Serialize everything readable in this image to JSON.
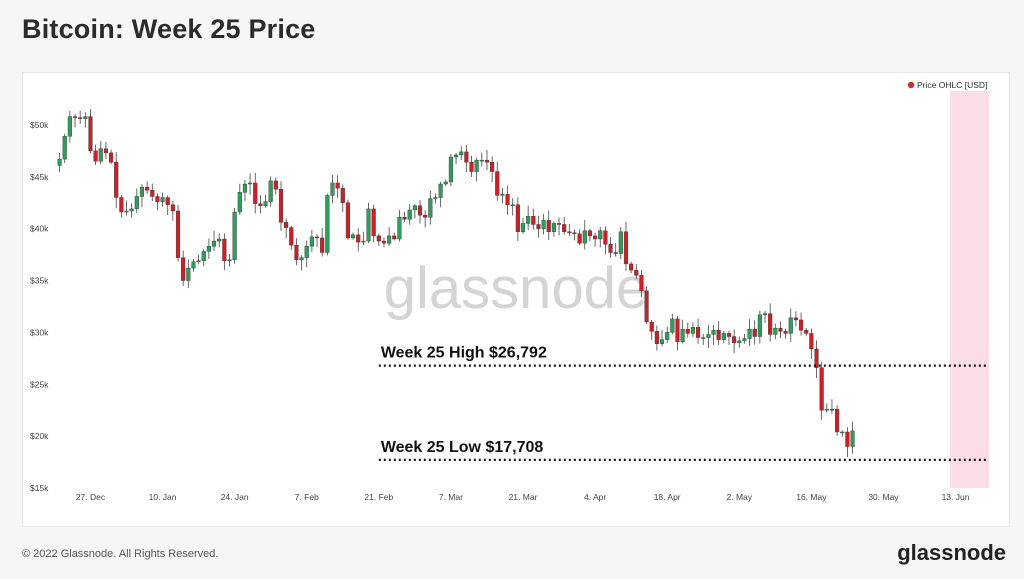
{
  "title": "Bitcoin: Week 25 Price",
  "footer": {
    "copyright": "© 2022 Glassnode. All Rights Reserved.",
    "brand": "glassnode"
  },
  "watermark": "glassnode",
  "colors": {
    "up": "#2e9e5b",
    "down": "#cc2027",
    "highlight": "#fbdde8",
    "legend_dot": "#d62828",
    "annotation_line": "#111111"
  },
  "chart_data": {
    "type": "candlestick",
    "legend": "Price OHLC [USD]",
    "legend_position": "top-right",
    "y_axis": {
      "min": 15000,
      "max": 55000,
      "ticks": [
        15000,
        20000,
        25000,
        30000,
        35000,
        40000,
        45000,
        50000
      ],
      "tick_labels": [
        "$15k",
        "$20k",
        "$25k",
        "$30k",
        "$35k",
        "$40k",
        "$45k",
        "$50k"
      ]
    },
    "x_axis": {
      "start": "2021-12-21",
      "end": "2022-06-19",
      "ticks": [
        "2021-12-27",
        "2022-01-10",
        "2022-01-24",
        "2022-02-07",
        "2022-02-21",
        "2022-03-07",
        "2022-03-21",
        "2022-04-04",
        "2022-04-18",
        "2022-05-02",
        "2022-05-16",
        "2022-05-30",
        "2022-06-13"
      ],
      "tick_labels": [
        "27. Dec",
        "10. Jan",
        "24. Jan",
        "7. Feb",
        "21. Feb",
        "7. Mar",
        "21. Mar",
        "4. Apr",
        "18. Apr",
        "2. May",
        "16. May",
        "30. May",
        "13. Jun"
      ]
    },
    "highlight_range": [
      "2022-06-13",
      "2022-06-19"
    ],
    "annotations": [
      {
        "label": "Week 25 High $26,792",
        "value": 26792,
        "from": "2022-02-21"
      },
      {
        "label": "Week 25 Low $17,708",
        "value": 17708,
        "from": "2022-02-21"
      }
    ],
    "close": [
      46700,
      48900,
      50800,
      50700,
      50600,
      50800,
      47500,
      46500,
      47700,
      47300,
      46400,
      43000,
      41600,
      41700,
      41900,
      43100,
      44000,
      43700,
      43100,
      42600,
      43000,
      42300,
      41700,
      37200,
      35000,
      36200,
      36800,
      36900,
      37800,
      38300,
      38800,
      39000,
      36900,
      37000,
      41600,
      43500,
      44300,
      44400,
      42400,
      42200,
      42600,
      44600,
      43800,
      40600,
      40100,
      38400,
      37000,
      37200,
      38300,
      39200,
      39100,
      37700,
      43200,
      44400,
      43900,
      42500,
      39100,
      39400,
      38700,
      38800,
      41900,
      39300,
      38800,
      38600,
      39300,
      39000,
      41100,
      40900,
      41800,
      42200,
      41300,
      41100,
      42900,
      43000,
      44300,
      44500,
      46900,
      47100,
      47400,
      46400,
      45500,
      46600,
      46600,
      46400,
      45500,
      43200,
      43300,
      42300,
      42300,
      39700,
      40500,
      41200,
      40400,
      40000,
      40800,
      39700,
      40500,
      40400,
      39700,
      39600,
      39500,
      38600,
      39800,
      39300,
      39000,
      39800,
      38500,
      37700,
      37600,
      39700,
      36600,
      36000,
      35500,
      34000,
      31000,
      30100,
      28900,
      29300,
      30000,
      31300,
      29100,
      30300,
      29900,
      30500,
      29500,
      29500,
      29800,
      30200,
      29300,
      29900,
      29600,
      29000,
      29200,
      29400,
      30300,
      29600,
      31700,
      31800,
      29800,
      30400,
      30100,
      29900,
      31400,
      31200,
      30200,
      29900,
      28400,
      26600,
      22500,
      22600,
      22600,
      20400,
      20400,
      19000,
      20500
    ]
  }
}
